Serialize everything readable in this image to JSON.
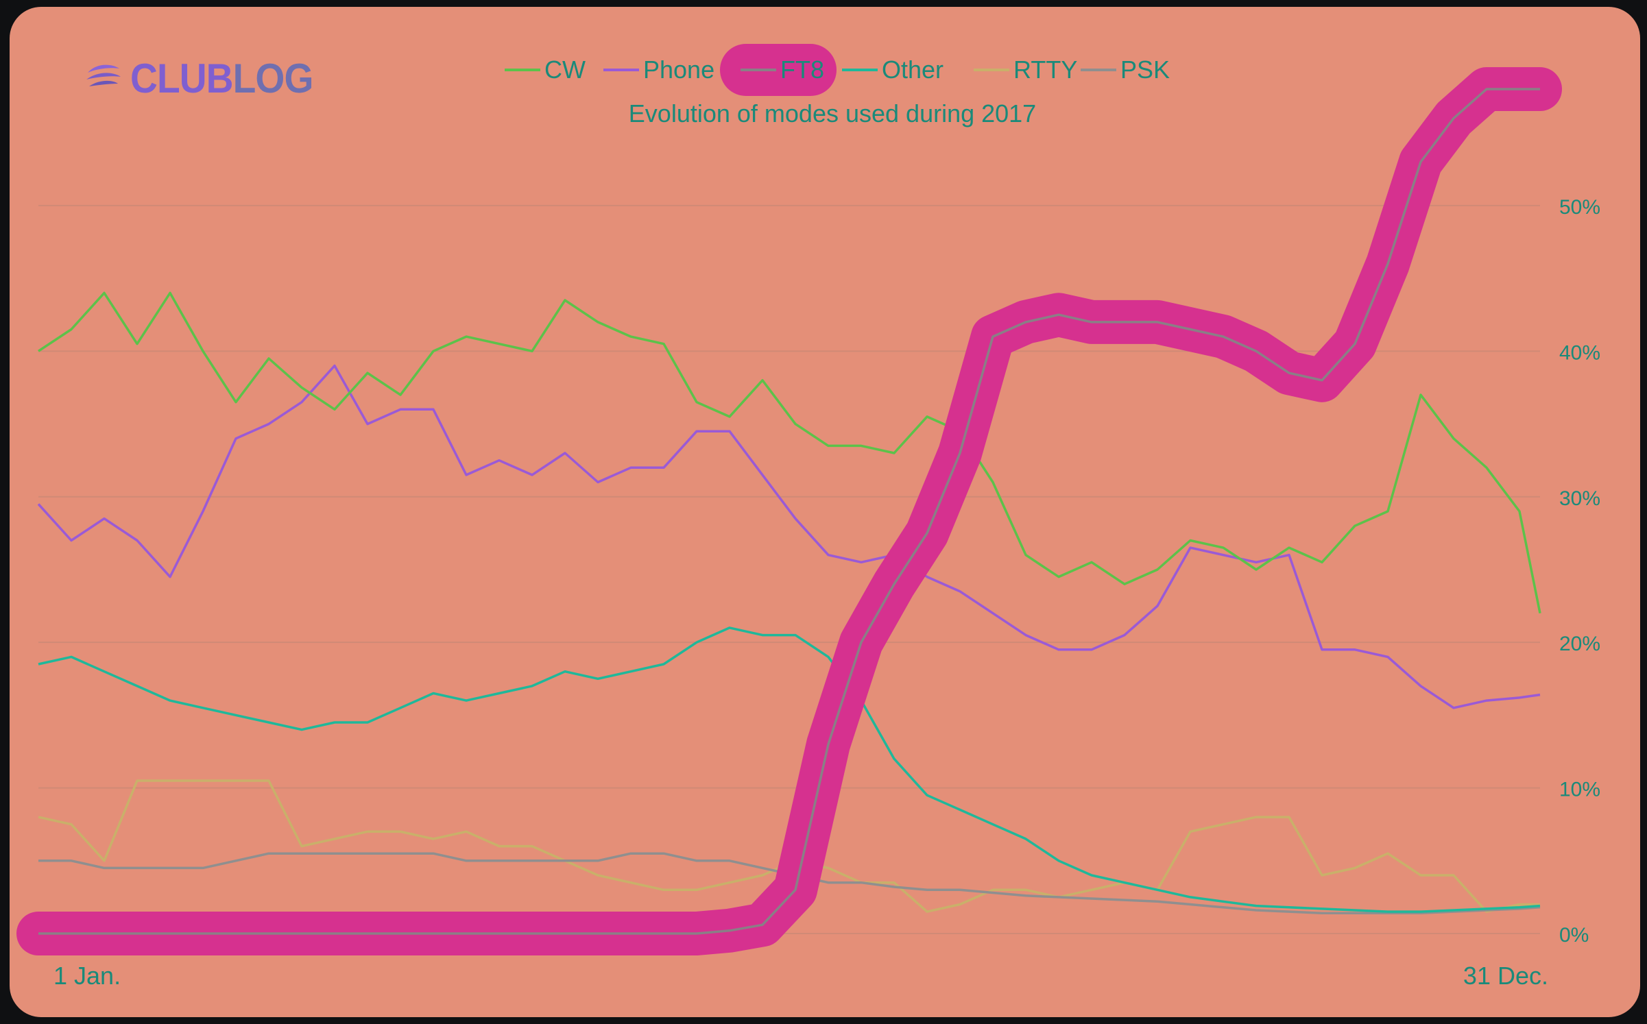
{
  "brand": {
    "name_part1": "CLUB",
    "name_part2": "LOG"
  },
  "chart_data": {
    "type": "line",
    "title": "Evolution of modes used during 2017",
    "xlabel": "",
    "ylabel": "",
    "x_tick_labels": [
      "1 Jan.",
      "31 Dec."
    ],
    "x": [
      0,
      8,
      16,
      24,
      32,
      40,
      48,
      56,
      64,
      72,
      80,
      88,
      96,
      104,
      112,
      120,
      128,
      136,
      144,
      152,
      160,
      168,
      176,
      184,
      192,
      200,
      208,
      216,
      224,
      232,
      240,
      248,
      256,
      264,
      272,
      280,
      288,
      296,
      304,
      312,
      320,
      328,
      336,
      344,
      352,
      360,
      365
    ],
    "ylim": [
      0,
      58
    ],
    "y_ticks": [
      0,
      10,
      20,
      30,
      40,
      50
    ],
    "y_tick_labels": [
      "0%",
      "10%",
      "20%",
      "30%",
      "40%",
      "50%"
    ],
    "y_axis_side": "right",
    "grid": true,
    "legend_position": "top",
    "series": [
      {
        "name": "CW",
        "color": "#5cc24a",
        "values": [
          40,
          41.5,
          44,
          40.5,
          44,
          40,
          36.5,
          39.5,
          37.5,
          36,
          38.5,
          37,
          40,
          41,
          40.5,
          40,
          43.5,
          42,
          41,
          40.5,
          36.5,
          35.5,
          38,
          35,
          33.5,
          33.5,
          33,
          35.5,
          34.5,
          31,
          26,
          24.5,
          25.5,
          24,
          25,
          27,
          26.5,
          25,
          26.5,
          25.5,
          28,
          29,
          37,
          34,
          32,
          29,
          22
        ]
      },
      {
        "name": "Phone",
        "color": "#9a5ad6",
        "values": [
          29.5,
          27,
          28.5,
          27,
          24.5,
          29,
          34,
          35,
          36.5,
          39,
          35,
          36,
          36,
          31.5,
          32.5,
          31.5,
          33,
          31,
          32,
          32,
          34.5,
          34.5,
          31.5,
          28.5,
          26,
          25.5,
          26,
          24.5,
          23.5,
          22,
          20.5,
          19.5,
          19.5,
          20.5,
          22.5,
          26.5,
          26,
          25.5,
          26,
          19.5,
          19.5,
          19,
          17,
          15.5,
          16,
          16.2,
          16.4
        ]
      },
      {
        "name": "FT8",
        "color": "#8a7f86",
        "highlight_color": "#d6318f",
        "values": [
          0,
          0,
          0,
          0,
          0,
          0,
          0,
          0,
          0,
          0,
          0,
          0,
          0,
          0,
          0,
          0,
          0,
          0,
          0,
          0,
          0,
          0.2,
          0.6,
          3,
          13,
          20,
          24,
          27.5,
          33,
          41,
          42,
          42.5,
          42,
          42,
          42,
          41.5,
          41,
          40,
          38.5,
          38,
          40.5,
          46,
          53,
          56,
          58,
          58,
          58
        ]
      },
      {
        "name": "Other",
        "color": "#1fb89a",
        "values": [
          18.5,
          19,
          18,
          17,
          16,
          15.5,
          15,
          14.5,
          14,
          14.5,
          14.5,
          15.5,
          16.5,
          16,
          16.5,
          17,
          18,
          17.5,
          18,
          18.5,
          20,
          21,
          20.5,
          20.5,
          19,
          16,
          12,
          9.5,
          8.5,
          7.5,
          6.5,
          5,
          4,
          3.5,
          3,
          2.5,
          2.2,
          1.9,
          1.8,
          1.7,
          1.6,
          1.5,
          1.5,
          1.6,
          1.7,
          1.8,
          1.9
        ]
      },
      {
        "name": "RTTY",
        "color": "#c9b06a",
        "values": [
          8,
          7.5,
          5,
          10.5,
          10.5,
          10.5,
          10.5,
          10.5,
          6,
          6.5,
          7,
          7,
          6.5,
          7,
          6,
          6,
          5,
          4,
          3.5,
          3,
          3,
          3.5,
          4,
          5,
          4.5,
          3.5,
          3.5,
          1.5,
          2,
          3,
          3,
          2.5,
          3,
          3.5,
          3,
          7,
          7.5,
          8,
          8,
          4,
          4.5,
          5.5,
          4,
          4,
          1.5,
          2,
          2
        ]
      },
      {
        "name": "PSK",
        "color": "#8f8f8f",
        "values": [
          5,
          5,
          4.5,
          4.5,
          4.5,
          4.5,
          5,
          5.5,
          5.5,
          5.5,
          5.5,
          5.5,
          5.5,
          5,
          5,
          5,
          5,
          5,
          5.5,
          5.5,
          5,
          5,
          4.5,
          4,
          3.5,
          3.5,
          3.2,
          3,
          3,
          2.8,
          2.6,
          2.5,
          2.4,
          2.3,
          2.2,
          2,
          1.8,
          1.6,
          1.5,
          1.4,
          1.4,
          1.4,
          1.4,
          1.5,
          1.6,
          1.7,
          1.8
        ]
      }
    ]
  }
}
